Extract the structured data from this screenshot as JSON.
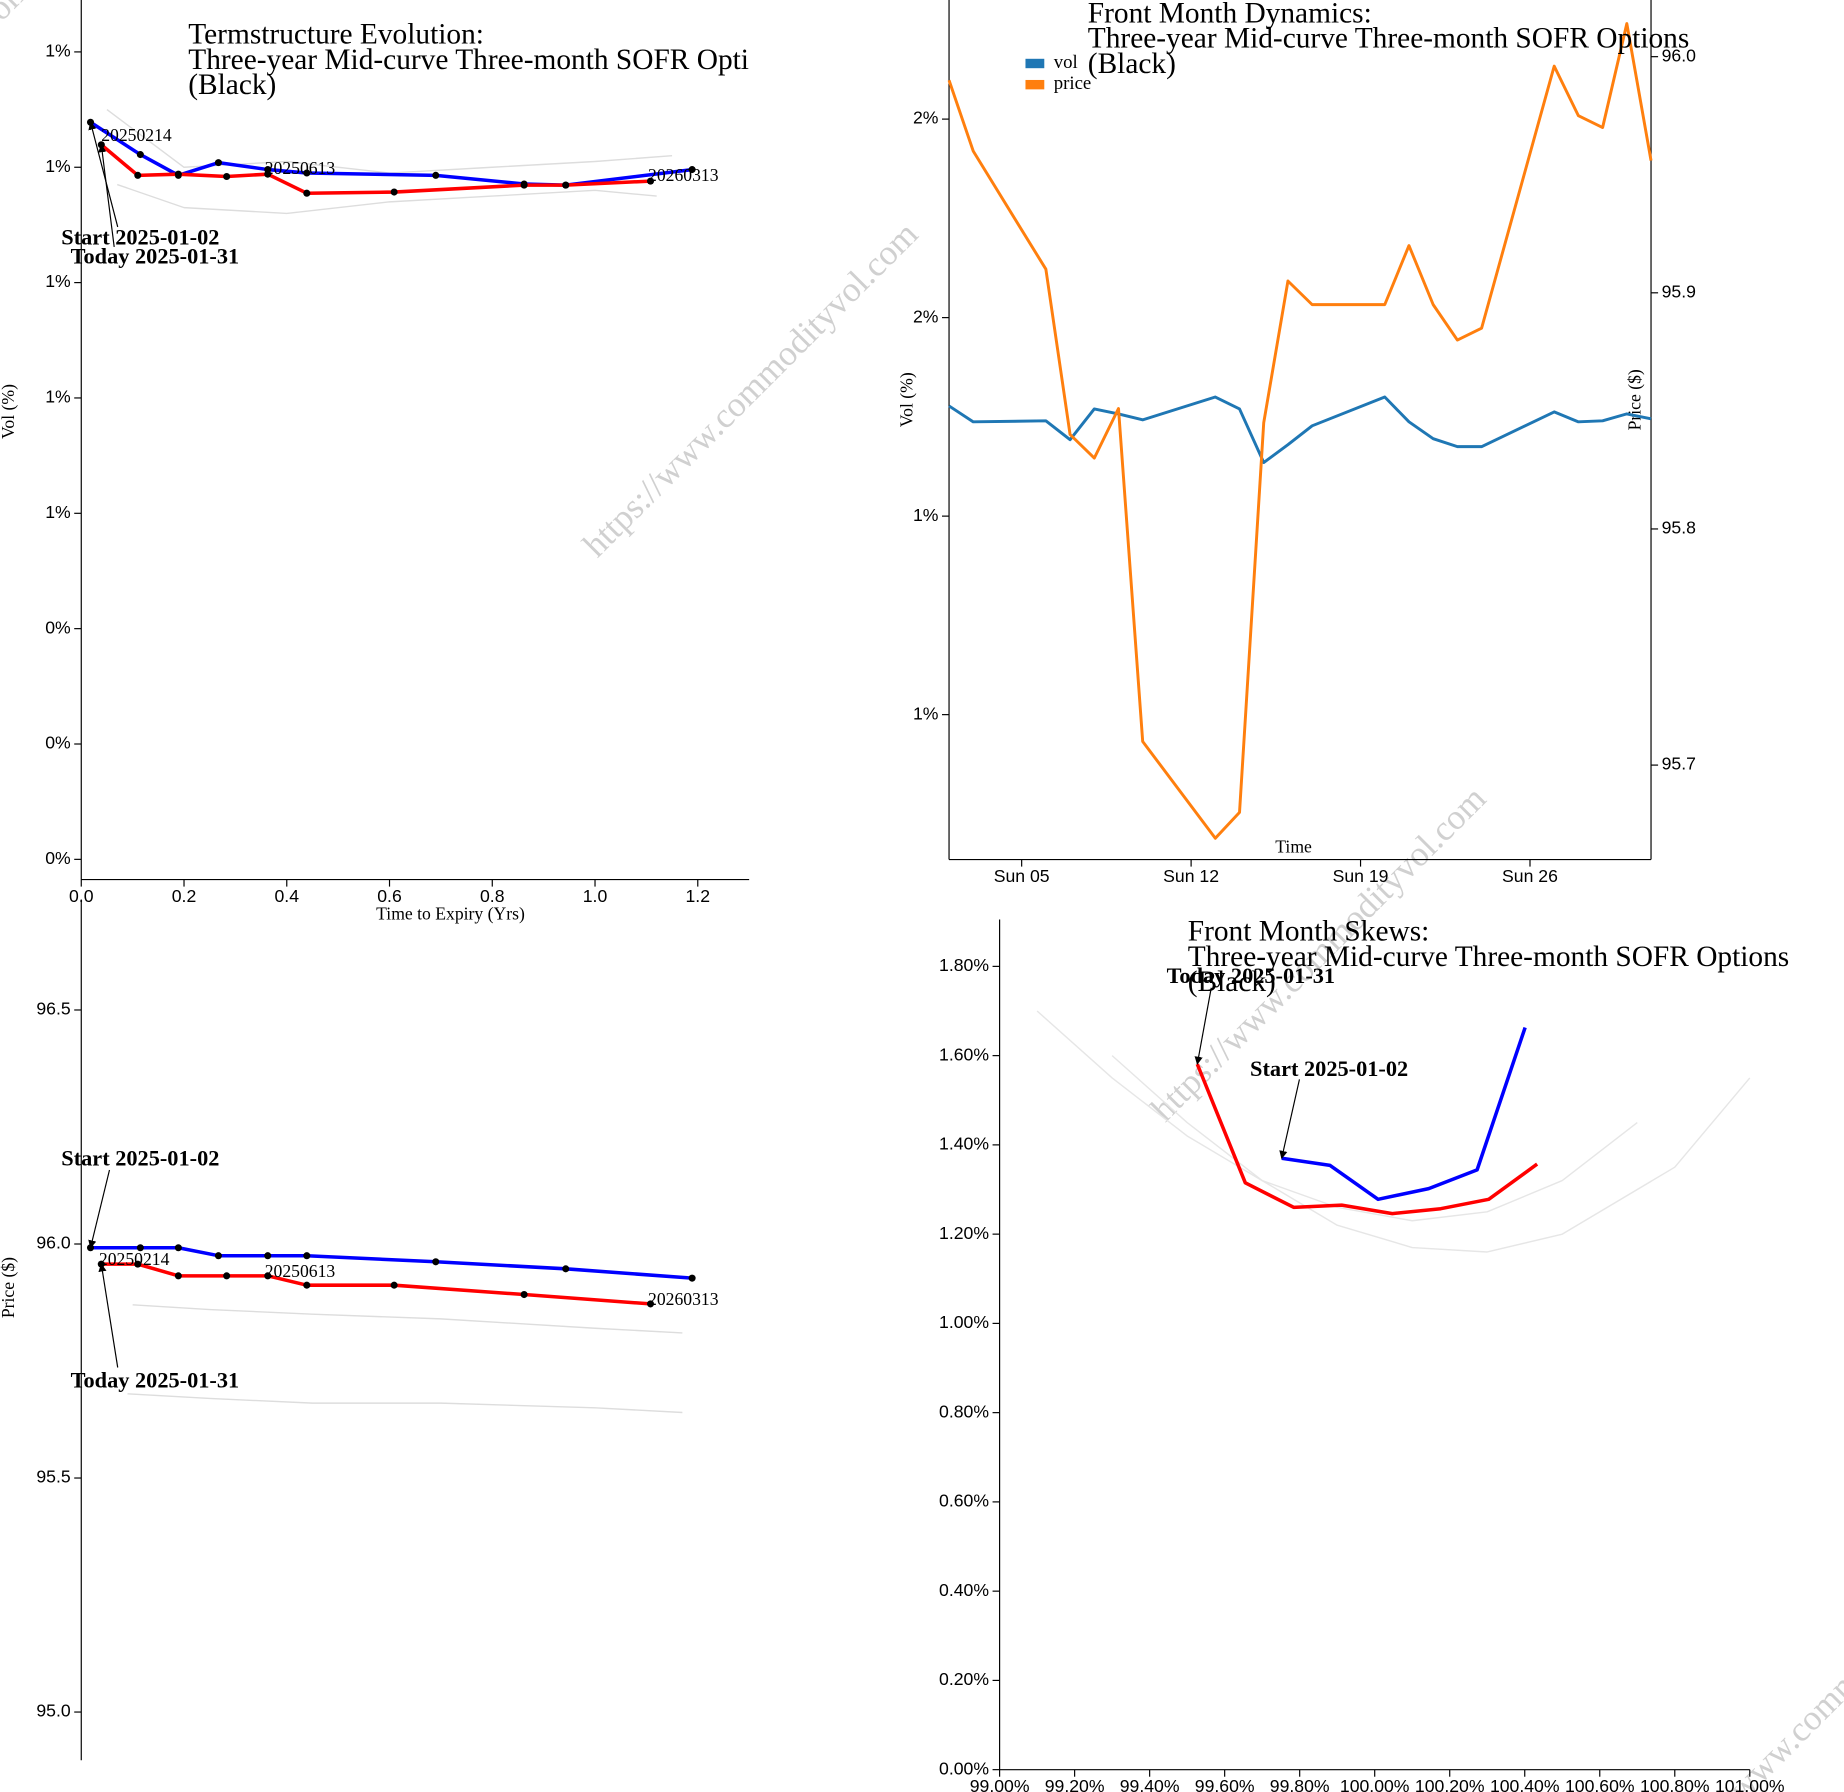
{
  "watermark": "https://www.commodityvol.com",
  "chart_data": [
    {
      "type": "line",
      "title": [
        "Termstructure Evolution:",
        "Three-year Mid-curve Three-month SOFR Options",
        "(Black)"
      ],
      "x_label": "Time to Expiry (Yrs)",
      "y_label": "Vol (%)",
      "xlim": [
        0,
        1.3
      ],
      "ylim": [
        -0.035,
        1.49
      ],
      "xticks": [
        {
          "value": 0,
          "label": "0.0"
        },
        0.2,
        0.4,
        0.6,
        0.8,
        {
          "value": 1,
          "label": "1.0"
        },
        1.2
      ],
      "yticks": [
        {
          "value": 1.4,
          "label": "1%"
        },
        {
          "value": 1.2,
          "label": "1%"
        },
        {
          "value": 1.0,
          "label": "1%"
        },
        {
          "value": 0.8,
          "label": "1%"
        },
        {
          "value": 0.6,
          "label": "1%"
        },
        {
          "value": 0.4,
          "label": "0%"
        },
        {
          "value": 0.2,
          "label": "0%"
        },
        {
          "value": 0,
          "label": "0%"
        }
      ],
      "markers": true,
      "series": [
        {
          "color": "#0000ff",
          "x": [
            0.018,
            0.115,
            0.189,
            0.267,
            0.363,
            0.439,
            0.69,
            0.862,
            0.943,
            1.189
          ],
          "values": [
            1.278,
            1.222,
            1.186,
            1.208,
            1.196,
            1.19,
            1.186,
            1.171,
            1.169,
            1.196
          ]
        },
        {
          "color": "#ff0000",
          "x": [
            0.039,
            0.11,
            0.189,
            0.283,
            0.363,
            0.439,
            0.609,
            0.862,
            0.943,
            1.108
          ],
          "values": [
            1.239,
            1.186,
            1.188,
            1.184,
            1.188,
            1.155,
            1.157,
            1.169,
            1.169,
            1.176
          ]
        },
        {
          "color": "#dddddd",
          "x": [
            0.05,
            0.2,
            0.4,
            0.6,
            0.8,
            1.0,
            1.15
          ],
          "values": [
            1.3,
            1.2,
            1.21,
            1.19,
            1.2,
            1.21,
            1.22
          ]
        },
        {
          "color": "#dddddd",
          "x": [
            0.07,
            0.2,
            0.4,
            0.6,
            0.8,
            1.0,
            1.12
          ],
          "values": [
            1.17,
            1.13,
            1.12,
            1.14,
            1.15,
            1.16,
            1.15
          ]
        }
      ],
      "annotations": [
        "Start 2025-01-02",
        "Today 2025-01-31"
      ],
      "point_labels": [
        "20250214",
        "20250613",
        "20260313"
      ]
    },
    {
      "type": "line",
      "title": [
        "Front Month Dynamics:",
        "Three-year Mid-curve Three-month SOFR Options",
        "(Black)"
      ],
      "x_label": "Time",
      "y_label": "Vol (%)",
      "y2_label": "Price ($)",
      "legend": "upper left",
      "x": [
        2,
        3,
        6,
        7,
        8,
        9,
        10,
        13,
        14,
        15,
        16,
        17,
        20,
        21,
        22,
        23,
        24,
        27,
        28,
        29,
        30,
        31
      ],
      "xlim": [
        2,
        31
      ],
      "ylim": [
        1.054,
        1.92
      ],
      "y2lim": [
        95.66,
        96.024
      ],
      "xticks": [
        {
          "value": 5,
          "label": "Sun 05"
        },
        {
          "value": 12,
          "label": "Sun 12"
        },
        {
          "value": 19,
          "label": "Sun 19"
        },
        {
          "value": 26,
          "label": "Sun 26"
        }
      ],
      "yticks": [
        {
          "value": 1.2,
          "label": "1%"
        },
        {
          "value": 1.4,
          "label": "1%"
        },
        {
          "value": 1.6,
          "label": "2%"
        },
        {
          "value": 1.8,
          "label": "2%"
        }
      ],
      "y2ticks": [
        95.7,
        95.8,
        95.9,
        {
          "value": 96,
          "label": "96.0"
        }
      ],
      "series": [
        {
          "name": "vol",
          "color": "#1f77b4",
          "values": [
            1.511,
            1.495,
            1.496,
            1.477,
            1.508,
            1.503,
            1.497,
            1.52,
            1.508,
            1.454,
            1.472,
            1.491,
            1.52,
            1.495,
            1.478,
            1.47,
            1.47,
            1.505,
            1.495,
            1.496,
            1.503,
            1.498
          ]
        },
        {
          "name": "price",
          "color": "#ff7f0e",
          "axis": "y2",
          "values": [
            95.99,
            95.96,
            95.91,
            95.84,
            95.83,
            95.851,
            95.71,
            95.669,
            95.68,
            95.845,
            95.905,
            95.895,
            95.895,
            95.92,
            95.895,
            95.88,
            95.885,
            95.996,
            95.975,
            95.97,
            96.014,
            95.956
          ]
        }
      ]
    },
    {
      "type": "line",
      "y_label": "Price ($)",
      "xlim": [
        0,
        1.3
      ],
      "ylim": [
        94.897,
        96.736
      ],
      "yticks": [
        {
          "value": 95,
          "label": "95.0"
        },
        95.5,
        {
          "value": 96,
          "label": "96.0"
        },
        96.5
      ],
      "markers": true,
      "series": [
        {
          "color": "#0000ff",
          "x": [
            0.018,
            0.115,
            0.189,
            0.267,
            0.363,
            0.439,
            0.69,
            0.943,
            1.189
          ],
          "values": [
            95.992,
            95.992,
            95.992,
            95.975,
            95.975,
            95.975,
            95.962,
            95.947,
            95.927
          ]
        },
        {
          "color": "#ff0000",
          "x": [
            0.039,
            0.11,
            0.189,
            0.283,
            0.363,
            0.439,
            0.609,
            0.862,
            1.108
          ],
          "values": [
            95.957,
            95.957,
            95.932,
            95.932,
            95.932,
            95.912,
            95.912,
            95.892,
            95.872
          ]
        },
        {
          "color": "#dddddd",
          "x": [
            0.1,
            0.25,
            0.45,
            0.7,
            1.0,
            1.17
          ],
          "values": [
            95.87,
            95.86,
            95.85,
            95.84,
            95.82,
            95.81
          ]
        },
        {
          "color": "#dddddd",
          "x": [
            0.09,
            0.25,
            0.45,
            0.7,
            1.0,
            1.17
          ],
          "values": [
            95.68,
            95.67,
            95.66,
            95.66,
            95.65,
            95.64
          ]
        }
      ],
      "annotations": [
        "Start 2025-01-02",
        "Today 2025-01-31"
      ],
      "point_labels": [
        "20250214",
        "20250613",
        "20260313"
      ]
    },
    {
      "type": "line",
      "title": [
        "Front Month Skews:",
        "Three-year Mid-curve Three-month SOFR Options",
        "(Black)"
      ],
      "xlim": [
        99,
        101
      ],
      "ylim": [
        0,
        1.905
      ],
      "xticks": [
        {
          "value": 99,
          "label": "99.00%"
        },
        {
          "value": 99.2,
          "label": "99.20%"
        },
        {
          "value": 99.4,
          "label": "99.40%"
        },
        {
          "value": 99.6,
          "label": "99.60%"
        },
        {
          "value": 99.8,
          "label": "99.80%"
        },
        {
          "value": 100,
          "label": "100.00%"
        },
        {
          "value": 100.2,
          "label": "100.20%"
        },
        {
          "value": 100.4,
          "label": "100.40%"
        },
        {
          "value": 100.6,
          "label": "100.60%"
        },
        {
          "value": 100.8,
          "label": "100.80%"
        },
        {
          "value": 101,
          "label": "101.00%"
        }
      ],
      "yticks": [
        {
          "value": 0,
          "label": "0.00%"
        },
        {
          "value": 0.2,
          "label": "0.20%"
        },
        {
          "value": 0.4,
          "label": "0.40%"
        },
        {
          "value": 0.6,
          "label": "0.60%"
        },
        {
          "value": 0.8,
          "label": "0.80%"
        },
        {
          "value": 1.0,
          "label": "1.00%"
        },
        {
          "value": 1.2,
          "label": "1.20%"
        },
        {
          "value": 1.4,
          "label": "1.40%"
        },
        {
          "value": 1.6,
          "label": "1.60%"
        },
        {
          "value": 1.8,
          "label": "1.80%"
        }
      ],
      "series": [
        {
          "color": "#0000ff",
          "x": [
            99.752,
            99.881,
            100.009,
            100.144,
            100.273,
            100.401
          ],
          "values": [
            1.37,
            1.354,
            1.278,
            1.302,
            1.344,
            1.663
          ]
        },
        {
          "color": "#ff0000",
          "x": [
            99.527,
            99.655,
            99.784,
            99.912,
            100.047,
            100.176,
            100.304,
            100.433
          ],
          "values": [
            1.581,
            1.315,
            1.26,
            1.265,
            1.246,
            1.257,
            1.278,
            1.357
          ]
        },
        {
          "color": "#e6e6e6",
          "x": [
            99.1,
            99.3,
            99.5,
            99.7,
            99.9,
            100.1,
            100.3,
            100.5,
            100.7
          ],
          "values": [
            1.7,
            1.55,
            1.42,
            1.32,
            1.26,
            1.23,
            1.25,
            1.32,
            1.45
          ]
        },
        {
          "color": "#e6e6e6",
          "x": [
            99.3,
            99.5,
            99.7,
            99.9,
            100.1,
            100.3,
            100.5,
            100.8,
            101.0
          ],
          "values": [
            1.6,
            1.45,
            1.32,
            1.22,
            1.17,
            1.16,
            1.2,
            1.35,
            1.55
          ]
        }
      ],
      "annotations": [
        "Start 2025-01-02",
        "Today 2025-01-31"
      ]
    }
  ]
}
